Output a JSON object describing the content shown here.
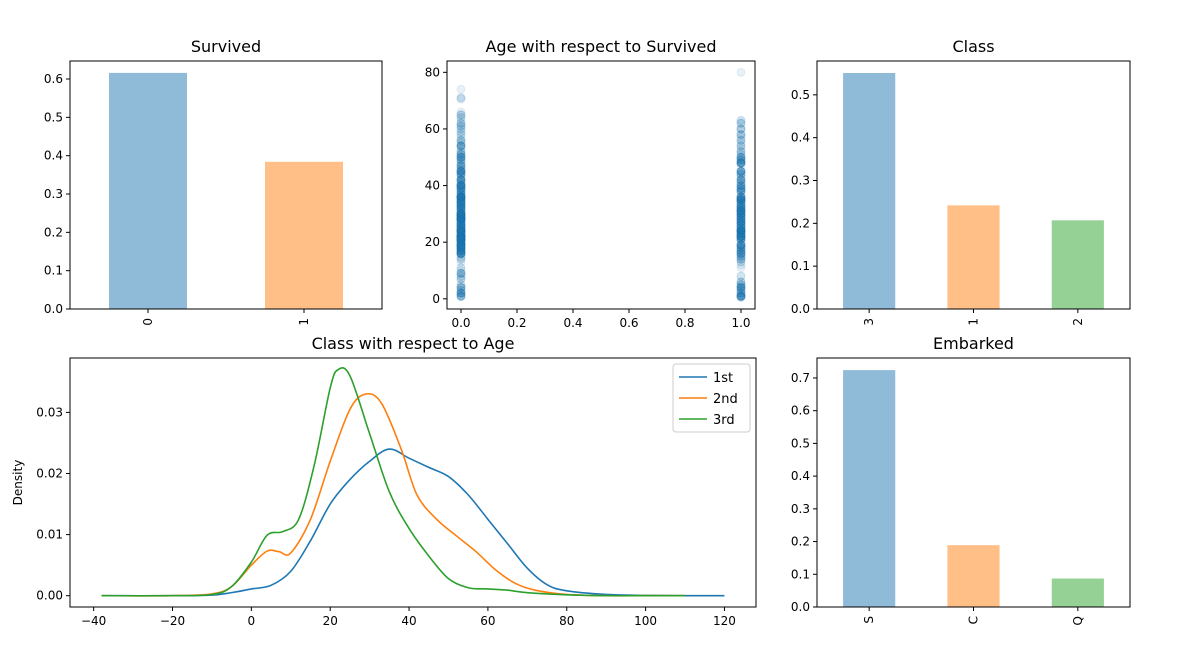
{
  "chart_data": [
    {
      "type": "bar",
      "title": "Survived",
      "xlabel": "",
      "ylabel": "",
      "categories": [
        "0",
        "1"
      ],
      "values": [
        0.616,
        0.384
      ],
      "colors": [
        "#8fbbd9",
        "#ffbf86"
      ],
      "ylim": [
        0,
        0.647
      ],
      "yticks": [
        0.0,
        0.1,
        0.2,
        0.3,
        0.4,
        0.5,
        0.6
      ],
      "ytick_labels": [
        "0.0",
        "0.1",
        "0.2",
        "0.3",
        "0.4",
        "0.5",
        "0.6"
      ],
      "xtick_rotation": 90,
      "grid": false
    },
    {
      "type": "scatter",
      "title": "Age with respect to Survived",
      "xlabel": "",
      "ylabel": "",
      "xlim": [
        -0.05,
        1.05
      ],
      "ylim": [
        -3.6,
        84
      ]
    },
    {
      "type": "bar",
      "title": "Class",
      "xlabel": "",
      "ylabel": "",
      "categories": [
        "3",
        "1",
        "2"
      ],
      "values": [
        0.551,
        0.242,
        0.207
      ],
      "colors": [
        "#8fbbd9",
        "#ffbf86",
        "#95d095"
      ],
      "ylim": [
        0,
        0.579
      ],
      "yticks": [
        0.0,
        0.1,
        0.2,
        0.3,
        0.4,
        0.5
      ],
      "ytick_labels": [
        "0.0",
        "0.1",
        "0.2",
        "0.3",
        "0.4",
        "0.5"
      ],
      "xtick_rotation": 90,
      "grid": false
    },
    {
      "type": "line",
      "title": "Class with respect to Age",
      "xlabel": "",
      "ylabel": "Density",
      "xlim": [
        -46,
        128
      ],
      "ylim": [
        -0.00185,
        0.0389
      ],
      "xticks": [
        -40,
        -20,
        0,
        20,
        40,
        60,
        80,
        100,
        120
      ],
      "xtick_labels": [
        "−40",
        "−20",
        "0",
        "20",
        "40",
        "60",
        "80",
        "100",
        "120"
      ],
      "yticks": [
        0.0,
        0.01,
        0.02,
        0.03
      ],
      "ytick_labels": [
        "0.00",
        "0.01",
        "0.02",
        "0.03"
      ],
      "legend": "top-right",
      "grid": false,
      "series": [
        {
          "name": "1st",
          "color": "#1f77b4",
          "x": [
            -38,
            -20,
            -10,
            -5,
            0,
            5,
            10,
            15,
            20,
            25,
            30,
            35,
            40,
            45,
            50,
            55,
            60,
            65,
            70,
            75,
            80,
            90,
            100,
            110,
            120
          ],
          "values": [
            0,
            0,
            0.0001,
            0.0005,
            0.0011,
            0.0017,
            0.004,
            0.009,
            0.015,
            0.019,
            0.022,
            0.024,
            0.0225,
            0.021,
            0.0195,
            0.0165,
            0.0125,
            0.0085,
            0.0045,
            0.0018,
            0.0008,
            0.0002,
            5e-05,
            0,
            0
          ]
        },
        {
          "name": "2nd",
          "color": "#ff7f0e",
          "x": [
            -38,
            -20,
            -10,
            -5,
            0,
            4,
            7,
            10,
            15,
            20,
            25,
            29,
            33,
            38,
            42,
            47,
            52,
            57,
            62,
            67,
            72,
            80,
            90,
            100,
            110
          ],
          "values": [
            0,
            0,
            0.0003,
            0.0015,
            0.005,
            0.0073,
            0.0072,
            0.007,
            0.0125,
            0.022,
            0.0305,
            0.033,
            0.0315,
            0.024,
            0.0165,
            0.0125,
            0.0098,
            0.0072,
            0.0042,
            0.002,
            0.0009,
            0.0002,
            0,
            0,
            0
          ]
        },
        {
          "name": "3rd",
          "color": "#2ca02c",
          "x": [
            -38,
            -20,
            -10,
            -5,
            0,
            4,
            8,
            12,
            16,
            20,
            22,
            25,
            30,
            35,
            40,
            45,
            50,
            55,
            60,
            65,
            70,
            80,
            90,
            100,
            110
          ],
          "values": [
            0,
            0,
            0.0002,
            0.0015,
            0.0055,
            0.0099,
            0.0105,
            0.0125,
            0.0215,
            0.034,
            0.037,
            0.036,
            0.0265,
            0.017,
            0.011,
            0.0065,
            0.0028,
            0.0013,
            0.0011,
            0.0009,
            0.0005,
            0.00015,
            0,
            0,
            0
          ]
        }
      ]
    },
    {
      "type": "bar",
      "title": "Embarked",
      "xlabel": "",
      "ylabel": "",
      "categories": [
        "S",
        "C",
        "Q"
      ],
      "values": [
        0.724,
        0.189,
        0.087
      ],
      "colors": [
        "#8fbbd9",
        "#ffbf86",
        "#95d095"
      ],
      "ylim": [
        0,
        0.761
      ],
      "yticks": [
        0.0,
        0.1,
        0.2,
        0.3,
        0.4,
        0.5,
        0.6,
        0.7
      ],
      "ytick_labels": [
        "0.0",
        "0.1",
        "0.2",
        "0.3",
        "0.4",
        "0.5",
        "0.6",
        "0.7"
      ],
      "xtick_rotation": 90,
      "grid": false
    }
  ]
}
